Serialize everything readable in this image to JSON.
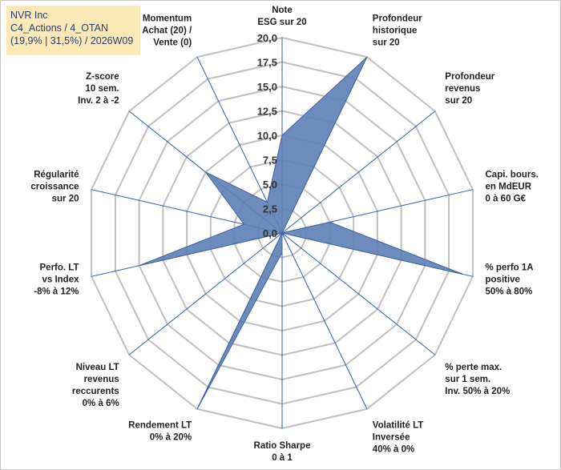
{
  "title": {
    "line1": "NVR Inc",
    "line2": "C4_Actions / 4_OTAN",
    "line3": "(19,9% | 31,5%) / 2026W09"
  },
  "colors": {
    "fill": "#5b7fb5",
    "stroke": "#3f63a0",
    "grid": "#bfbfbf",
    "spoke": "#2f5ea8",
    "title_bg": "#fbe9b7"
  },
  "chart_data": {
    "type": "radar",
    "range": [
      0,
      20
    ],
    "ticks": [
      "0,0",
      "2,5",
      "5,0",
      "7,5",
      "10,0",
      "12,5",
      "15,0",
      "17,5",
      "20,0"
    ],
    "axes": [
      {
        "label": [
          "Note",
          "ESG sur 20"
        ],
        "value": 10.0
      },
      {
        "label": [
          "Profondeur",
          "historique",
          "sur 20"
        ],
        "value": 20.0
      },
      {
        "label": [
          "Profondeur",
          "revenus",
          "sur 20"
        ],
        "value": 0.0
      },
      {
        "label": [
          "Capi. bours.",
          "en MdEUR",
          "0 à 60 G€"
        ],
        "value": 5.0
      },
      {
        "label": [
          "% perfo 1A",
          "positive",
          "50% à 80%"
        ],
        "value": 19.0
      },
      {
        "label": [
          "% perte max.",
          "sur 1 sem.",
          "Inv. 50% à 20%"
        ],
        "value": 0.0
      },
      {
        "label": [
          "Volatilité LT",
          "Inversée",
          "40% à 0%"
        ],
        "value": 0.0
      },
      {
        "label": [
          "Ratio Sharpe",
          "0 à 1"
        ],
        "value": 2.0
      },
      {
        "label": [
          "Rendement LT",
          "0% à 20%"
        ],
        "value": 20.0
      },
      {
        "label": [
          "Niveau LT",
          "revenus",
          "reccurents",
          "0% à 6%"
        ],
        "value": 0.0
      },
      {
        "label": [
          "Perfo. LT",
          "vs Index",
          "-8% à 12%"
        ],
        "value": 15.0
      },
      {
        "label": [
          "Régularité",
          "croissance",
          "sur 20"
        ],
        "value": 4.0
      },
      {
        "label": [
          "Z-score",
          "10 sem.",
          "Inv. 2 à -2"
        ],
        "value": 10.0
      },
      {
        "label": [
          "Momentum",
          "Achat (20) /",
          "Vente (0)"
        ],
        "value": 3.5
      }
    ]
  }
}
